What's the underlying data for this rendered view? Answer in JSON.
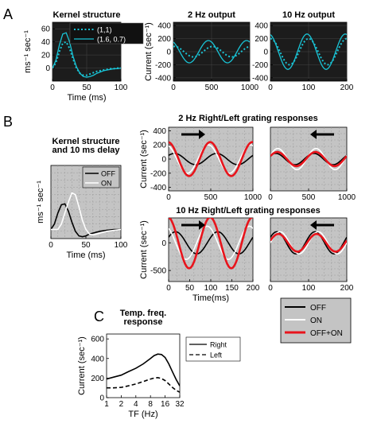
{
  "panel_letters": {
    "a": "A",
    "b": "B",
    "c": "C"
  },
  "colors": {
    "dark_bg": "#1c1c1c",
    "grid_bg": "#c4c4c4",
    "cyan": "#19c4d6",
    "red": "#e8141c",
    "black": "#000000",
    "white": "#ffffff"
  },
  "chart_data": [
    {
      "id": "A1",
      "type": "line",
      "title": "Kernel structure",
      "xlabel": "Time (ms)",
      "ylabel": "ms⁻¹ sec⁻¹",
      "xlim": [
        0,
        100
      ],
      "ylim": [
        -20,
        70
      ],
      "xticks": [
        0,
        50,
        100
      ],
      "yticks": [
        0,
        20,
        40,
        60
      ],
      "background": "dark",
      "legend": "top-right",
      "series": [
        {
          "name": "(1,1)",
          "style": "dotted",
          "color": "#19c4d6",
          "x": [
            0,
            5,
            10,
            15,
            20,
            25,
            30,
            35,
            40,
            45,
            50,
            55,
            60,
            65,
            70,
            75,
            80,
            85,
            90,
            95,
            100
          ],
          "y": [
            0,
            8,
            25,
            38,
            40,
            30,
            14,
            0,
            -8,
            -11,
            -11,
            -9,
            -7,
            -5,
            -4,
            -3,
            -2,
            -1,
            -1,
            0,
            0
          ]
        },
        {
          "name": "(1.6, 0.7)",
          "style": "solid",
          "color": "#19c4d6",
          "x": [
            0,
            5,
            10,
            15,
            20,
            25,
            30,
            35,
            40,
            45,
            50,
            55,
            60,
            65,
            70,
            75,
            80,
            85,
            90,
            95,
            100
          ],
          "y": [
            0,
            12,
            35,
            52,
            54,
            40,
            18,
            2,
            -8,
            -13,
            -14,
            -13,
            -11,
            -8,
            -6,
            -4,
            -3,
            -2,
            -1,
            -1,
            0
          ]
        }
      ]
    },
    {
      "id": "A2",
      "type": "line",
      "title": "2 Hz output",
      "xlabel": "",
      "ylabel": "Current (sec⁻¹)",
      "xlim": [
        0,
        1000
      ],
      "ylim": [
        -450,
        450
      ],
      "xticks": [
        0,
        500,
        1000
      ],
      "yticks": [
        -400,
        -200,
        0,
        200,
        400
      ],
      "background": "dark",
      "series": [
        {
          "style": "dotted",
          "color": "#19c4d6",
          "amplitude": 80,
          "frequency_hz": 2,
          "phase_deg": 80
        },
        {
          "style": "solid",
          "color": "#19c4d6",
          "amplitude": 170,
          "frequency_hz": 2,
          "phase_deg": 120
        }
      ]
    },
    {
      "id": "A3",
      "type": "line",
      "title": "10 Hz output",
      "xlabel": "",
      "ylabel": "",
      "xlim": [
        0,
        200
      ],
      "ylim": [
        -450,
        450
      ],
      "xticks": [
        0,
        100,
        200
      ],
      "yticks": [
        -400,
        -200,
        0,
        200,
        400
      ],
      "background": "dark",
      "series": [
        {
          "style": "dotted",
          "color": "#19c4d6",
          "amplitude": 200,
          "frequency_hz": 10,
          "phase_deg": 90
        },
        {
          "style": "solid",
          "color": "#19c4d6",
          "amplitude": 270,
          "frequency_hz": 10,
          "phase_deg": 105
        }
      ]
    },
    {
      "id": "B1",
      "type": "line",
      "title": "Kernel structure",
      "subtitle": "and 10 ms delay",
      "xlabel": "Time (ms)",
      "ylabel": "ms⁻¹ sec⁻¹",
      "xlim": [
        0,
        100
      ],
      "ylim": [
        -10,
        70
      ],
      "xticks": [
        0,
        50,
        100
      ],
      "yticks": [],
      "background": "grid",
      "legend": "top-right",
      "series": [
        {
          "name": "OFF",
          "color": "#000000",
          "x": [
            0,
            5,
            10,
            15,
            20,
            25,
            30,
            35,
            40,
            45,
            50,
            55,
            60,
            70,
            80,
            90,
            100
          ],
          "y": [
            0,
            6,
            18,
            27,
            28,
            20,
            8,
            -2,
            -7,
            -8,
            -7,
            -5,
            -4,
            -2,
            -1,
            0,
            0
          ]
        },
        {
          "name": "ON",
          "color": "#ffffff",
          "x": [
            0,
            10,
            15,
            20,
            25,
            30,
            35,
            40,
            45,
            50,
            55,
            60,
            65,
            70,
            80,
            90,
            100
          ],
          "y": [
            0,
            0,
            6,
            18,
            30,
            40,
            38,
            25,
            10,
            0,
            -5,
            -6,
            -5,
            -4,
            -2,
            -1,
            0
          ]
        }
      ]
    },
    {
      "id": "B2",
      "type": "line",
      "title": "2 Hz Right/Left grating responses",
      "xlabel": "",
      "ylabel": "Current (sec⁻¹)",
      "xlim": [
        0,
        1000
      ],
      "ylim": [
        -450,
        450
      ],
      "xticks": [
        0,
        500,
        1000
      ],
      "yticks": [
        -400,
        -200,
        0,
        200,
        400
      ],
      "background": "grid",
      "arrow": "right",
      "series": [
        {
          "name": "OFF",
          "color": "#000000",
          "amplitude": 80,
          "frequency_hz": 2,
          "phase_deg": 40
        },
        {
          "name": "ON",
          "color": "#ffffff",
          "amplitude": 200,
          "frequency_hz": 2,
          "phase_deg": 110
        },
        {
          "name": "OFF+ON",
          "color": "#e8141c",
          "amplitude": 240,
          "frequency_hz": 2,
          "phase_deg": 95
        }
      ]
    },
    {
      "id": "B3",
      "type": "line",
      "title": "",
      "xlabel": "",
      "ylabel": "",
      "xlim": [
        0,
        1000
      ],
      "ylim": [
        -450,
        450
      ],
      "xticks": [
        0,
        500,
        1000
      ],
      "yticks": [],
      "background": "grid",
      "arrow": "left",
      "series": [
        {
          "name": "OFF",
          "color": "#000000",
          "amplitude": 80,
          "frequency_hz": 2,
          "phase_deg": 40
        },
        {
          "name": "ON",
          "color": "#ffffff",
          "amplitude": 150,
          "frequency_hz": 2,
          "phase_deg": 20
        },
        {
          "name": "OFF+ON",
          "color": "#e8141c",
          "amplitude": 100,
          "frequency_hz": 2,
          "phase_deg": 25
        }
      ]
    },
    {
      "id": "B4",
      "type": "line",
      "title": "10 Hz Right/Left grating responses",
      "xlabel": "Time(ms)",
      "ylabel": "Current (sec⁻¹)",
      "xlim": [
        0,
        200
      ],
      "ylim": [
        -700,
        450
      ],
      "xticks": [
        0,
        50,
        100,
        150,
        200
      ],
      "yticks": [
        -500,
        0
      ],
      "background": "grid",
      "arrow": "right",
      "series": [
        {
          "name": "OFF",
          "color": "#000000",
          "amplitude": 200,
          "frequency_hz": 10,
          "phase_deg": 30
        },
        {
          "name": "ON",
          "color": "#ffffff",
          "amplitude": 300,
          "frequency_hz": 10,
          "phase_deg": 120
        },
        {
          "name": "OFF+ON",
          "color": "#e8141c",
          "amplitude": 460,
          "frequency_hz": 10,
          "phase_deg": 95
        }
      ]
    },
    {
      "id": "B5",
      "type": "line",
      "title": "",
      "xlabel": "",
      "ylabel": "",
      "xlim": [
        0,
        200
      ],
      "ylim": [
        -700,
        450
      ],
      "xticks": [
        0,
        100,
        200
      ],
      "yticks": [],
      "background": "grid",
      "arrow": "left",
      "series": [
        {
          "name": "OFF",
          "color": "#000000",
          "amplitude": 200,
          "frequency_hz": 10,
          "phase_deg": 30
        },
        {
          "name": "ON",
          "color": "#ffffff",
          "amplitude": 200,
          "frequency_hz": 10,
          "phase_deg": 0
        },
        {
          "name": "OFF+ON",
          "color": "#e8141c",
          "amplitude": 160,
          "frequency_hz": 10,
          "phase_deg": 15
        }
      ]
    },
    {
      "id": "C",
      "type": "line",
      "title": "Temp. freq.",
      "subtitle": "response",
      "xlabel": "TF (Hz)",
      "ylabel": "Current (sec⁻¹)",
      "xscale": "log2",
      "xlim": [
        1,
        32
      ],
      "ylim": [
        0,
        650
      ],
      "xticks": [
        1,
        2,
        4,
        8,
        16,
        32
      ],
      "yticks": [
        0,
        200,
        400,
        600
      ],
      "background": "white",
      "legend": "right",
      "series": [
        {
          "name": "Right",
          "style": "solid",
          "color": "#000000",
          "x": [
            1,
            1.4,
            2,
            2.8,
            4,
            5.7,
            8,
            9.5,
            11.3,
            13.5,
            16,
            19,
            22.6,
            27,
            32
          ],
          "y": [
            190,
            210,
            230,
            265,
            300,
            345,
            400,
            430,
            445,
            440,
            410,
            345,
            265,
            185,
            120
          ]
        },
        {
          "name": "Left",
          "style": "dashed",
          "color": "#000000",
          "x": [
            1,
            1.4,
            2,
            2.8,
            4,
            5.7,
            8,
            9.5,
            11.3,
            13.5,
            16,
            19,
            22.6,
            27,
            32
          ],
          "y": [
            100,
            100,
            105,
            120,
            140,
            165,
            190,
            200,
            205,
            195,
            175,
            140,
            105,
            75,
            55
          ]
        }
      ]
    }
  ],
  "shared_legend": {
    "entries": [
      {
        "label": "OFF",
        "color": "#000000"
      },
      {
        "label": "ON",
        "color": "#ffffff"
      },
      {
        "label": "OFF+ON",
        "color": "#e8141c"
      }
    ]
  }
}
